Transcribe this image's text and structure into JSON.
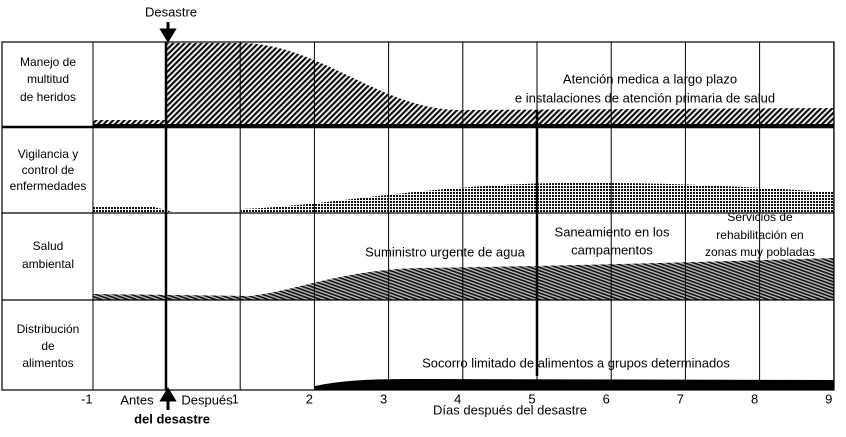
{
  "header": {
    "event": "Desastre"
  },
  "rows": [
    {
      "label": [
        "Manejo de",
        "multitud",
        "de heridos"
      ]
    },
    {
      "label": [
        "Vigilancia y",
        "control de",
        "enfermedades"
      ]
    },
    {
      "label": [
        "Salud",
        "ambiental"
      ]
    },
    {
      "label": [
        "Distribución",
        "de",
        "alimentos"
      ]
    }
  ],
  "annotations": [
    {
      "lines": [
        "Atención medica a largo plazo",
        "e instalaciones de atención primaria de salud"
      ]
    },
    {
      "lines": [
        "Suministro urgente de agua"
      ]
    },
    {
      "lines": [
        "Saneamiento en los",
        "campamentos"
      ]
    },
    {
      "lines": [
        "Servicios de",
        "rehabilitación en",
        "zonas muy pobladas"
      ]
    },
    {
      "lines": [
        "Socorro limitado de alimentos a grupos determinados"
      ]
    }
  ],
  "axis": {
    "ticks": [
      -1,
      1,
      2,
      3,
      4,
      5,
      6,
      7,
      8,
      9
    ],
    "before": "Antes",
    "after": "Después",
    "event_label": "del desastre",
    "label": "Días después del desastre"
  }
}
